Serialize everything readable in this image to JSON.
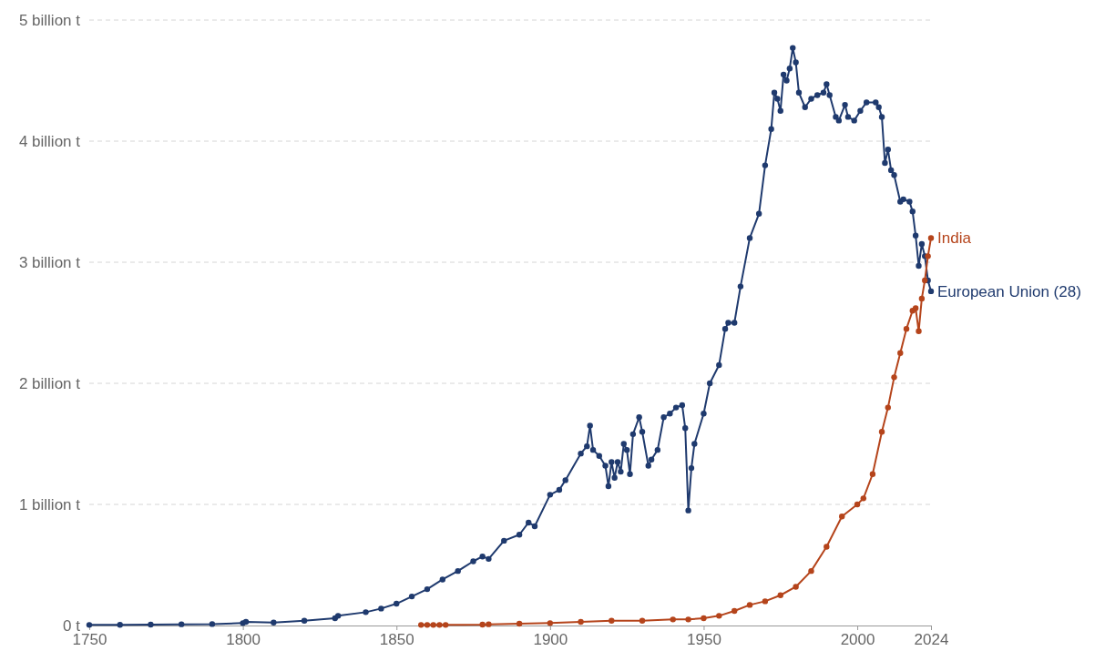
{
  "chart_data": {
    "type": "line",
    "xlim": [
      1750,
      2024
    ],
    "xticks": [
      1750,
      1800,
      1850,
      1900,
      1950,
      2000,
      2024
    ],
    "ylim": [
      0,
      5
    ],
    "yticks": [
      {
        "value": 0,
        "label": "0 t"
      },
      {
        "value": 1,
        "label": "1 billion t"
      },
      {
        "value": 2,
        "label": "2 billion t"
      },
      {
        "value": 3,
        "label": "3 billion t"
      },
      {
        "value": 4,
        "label": "4 billion t"
      },
      {
        "value": 5,
        "label": "5 billion t"
      }
    ],
    "grid": "y",
    "legend": false,
    "marker": "circle",
    "line_style": "solid",
    "series": [
      {
        "name": "European Union (28)",
        "color": "#1f3a6e",
        "x": [
          1750,
          1760,
          1770,
          1780,
          1790,
          1800,
          1801,
          1810,
          1820,
          1830,
          1831,
          1840,
          1845,
          1850,
          1855,
          1860,
          1865,
          1870,
          1875,
          1878,
          1880,
          1885,
          1890,
          1893,
          1895,
          1900,
          1903,
          1905,
          1910,
          1912,
          1913,
          1914,
          1916,
          1918,
          1919,
          1920,
          1921,
          1922,
          1923,
          1924,
          1925,
          1926,
          1927,
          1929,
          1930,
          1932,
          1933,
          1935,
          1937,
          1939,
          1941,
          1943,
          1944,
          1945,
          1946,
          1947,
          1950,
          1952,
          1955,
          1957,
          1958,
          1960,
          1962,
          1965,
          1968,
          1970,
          1972,
          1973,
          1974,
          1975,
          1976,
          1977,
          1978,
          1979,
          1980,
          1981,
          1983,
          1985,
          1987,
          1989,
          1990,
          1991,
          1993,
          1994,
          1996,
          1997,
          1999,
          2001,
          2003,
          2006,
          2007,
          2008,
          2009,
          2010,
          2011,
          2012,
          2014,
          2015,
          2017,
          2018,
          2019,
          2020,
          2021,
          2022,
          2023,
          2024
        ],
        "values": [
          0.005,
          0.006,
          0.008,
          0.01,
          0.012,
          0.02,
          0.03,
          0.025,
          0.04,
          0.06,
          0.08,
          0.11,
          0.14,
          0.18,
          0.24,
          0.3,
          0.38,
          0.45,
          0.53,
          0.57,
          0.55,
          0.7,
          0.75,
          0.85,
          0.82,
          1.08,
          1.12,
          1.2,
          1.42,
          1.48,
          1.65,
          1.45,
          1.4,
          1.32,
          1.15,
          1.35,
          1.22,
          1.35,
          1.27,
          1.5,
          1.45,
          1.25,
          1.58,
          1.72,
          1.6,
          1.32,
          1.37,
          1.45,
          1.72,
          1.75,
          1.8,
          1.82,
          1.63,
          0.95,
          1.3,
          1.5,
          1.75,
          2.0,
          2.15,
          2.45,
          2.5,
          2.5,
          2.8,
          3.2,
          3.4,
          3.8,
          4.1,
          4.4,
          4.35,
          4.25,
          4.55,
          4.5,
          4.6,
          4.77,
          4.65,
          4.4,
          4.28,
          4.35,
          4.38,
          4.4,
          4.47,
          4.38,
          4.2,
          4.17,
          4.3,
          4.2,
          4.17,
          4.25,
          4.32,
          4.32,
          4.28,
          4.2,
          3.82,
          3.93,
          3.76,
          3.72,
          3.5,
          3.52,
          3.5,
          3.42,
          3.22,
          2.97,
          3.15,
          3.05,
          2.85,
          2.76
        ]
      },
      {
        "name": "India",
        "color": "#b5441b",
        "x": [
          1858,
          1860,
          1862,
          1864,
          1866,
          1878,
          1880,
          1890,
          1900,
          1910,
          1920,
          1930,
          1940,
          1945,
          1950,
          1955,
          1960,
          1965,
          1970,
          1975,
          1980,
          1985,
          1990,
          1995,
          2000,
          2002,
          2005,
          2008,
          2010,
          2012,
          2014,
          2016,
          2018,
          2019,
          2020,
          2021,
          2022,
          2023,
          2024
        ],
        "values": [
          0.005,
          0.005,
          0.005,
          0.005,
          0.005,
          0.008,
          0.01,
          0.015,
          0.02,
          0.03,
          0.04,
          0.04,
          0.05,
          0.05,
          0.06,
          0.08,
          0.12,
          0.17,
          0.2,
          0.25,
          0.32,
          0.45,
          0.65,
          0.9,
          1.0,
          1.05,
          1.25,
          1.6,
          1.8,
          2.05,
          2.25,
          2.45,
          2.6,
          2.62,
          2.43,
          2.7,
          2.85,
          3.05,
          3.2
        ]
      }
    ]
  }
}
